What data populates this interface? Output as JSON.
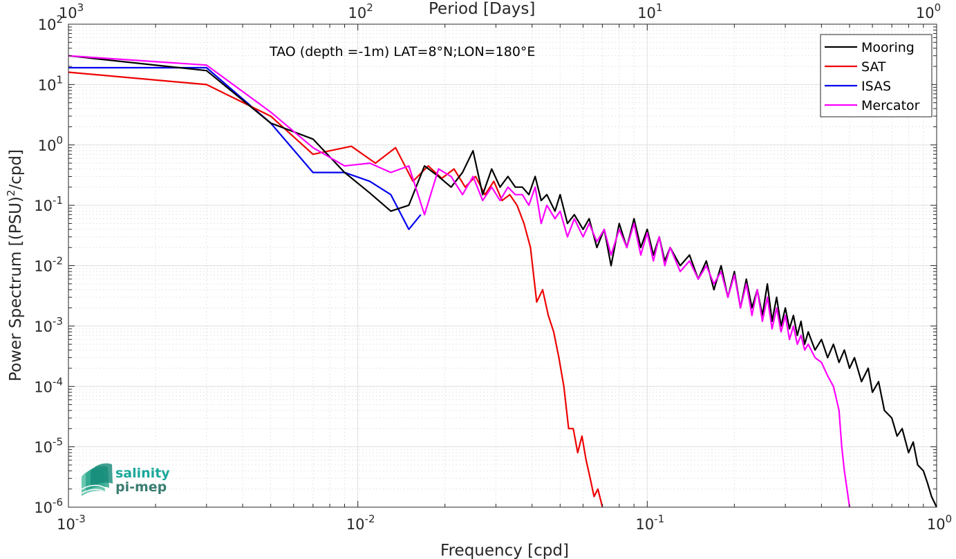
{
  "chart_data": {
    "type": "line",
    "title": "TAO (depth =-1m) LAT=8°N;LON=180°E",
    "xlabel": "Frequency [cpd]",
    "ylabel": "Power Spectrum [(PSU)^2/cpd]",
    "top_xlabel": "Period [Days]",
    "x_scale": "log",
    "y_scale": "log",
    "xlim": [
      0.001,
      1
    ],
    "ylim": [
      1e-06,
      100
    ],
    "x_ticks": [
      {
        "mant": "10",
        "exp": "-3"
      },
      {
        "mant": "10",
        "exp": "-2"
      },
      {
        "mant": "10",
        "exp": "-1"
      },
      {
        "mant": "10",
        "exp": "0"
      }
    ],
    "top_ticks": [
      {
        "mant": "10",
        "exp": "3"
      },
      {
        "mant": "10",
        "exp": "2"
      },
      {
        "mant": "10",
        "exp": "1"
      },
      {
        "mant": "10",
        "exp": "0"
      }
    ],
    "y_ticks": [
      {
        "mant": "10",
        "exp": "2"
      },
      {
        "mant": "10",
        "exp": "1"
      },
      {
        "mant": "10",
        "exp": "0"
      },
      {
        "mant": "10",
        "exp": "-1"
      },
      {
        "mant": "10",
        "exp": "-2"
      },
      {
        "mant": "10",
        "exp": "-3"
      },
      {
        "mant": "10",
        "exp": "-4"
      },
      {
        "mant": "10",
        "exp": "-5"
      },
      {
        "mant": "10",
        "exp": "-6"
      }
    ],
    "grid": true,
    "legend_position": "top-right",
    "series": [
      {
        "name": "Mooring",
        "color": "#000000",
        "x": [
          0.001,
          0.003,
          0.005,
          0.007,
          0.009,
          0.011,
          0.013,
          0.015,
          0.017,
          0.019,
          0.021,
          0.023,
          0.025,
          0.027,
          0.029,
          0.031,
          0.033,
          0.035,
          0.037,
          0.039,
          0.041,
          0.043,
          0.045,
          0.048,
          0.05,
          0.053,
          0.056,
          0.06,
          0.063,
          0.067,
          0.071,
          0.075,
          0.08,
          0.085,
          0.09,
          0.095,
          0.1,
          0.105,
          0.11,
          0.115,
          0.12,
          0.13,
          0.14,
          0.15,
          0.16,
          0.17,
          0.18,
          0.19,
          0.2,
          0.21,
          0.22,
          0.23,
          0.24,
          0.25,
          0.26,
          0.27,
          0.28,
          0.29,
          0.3,
          0.31,
          0.32,
          0.33,
          0.34,
          0.35,
          0.36,
          0.38,
          0.4,
          0.42,
          0.44,
          0.46,
          0.48,
          0.5,
          0.52,
          0.55,
          0.58,
          0.6,
          0.63,
          0.66,
          0.7,
          0.73,
          0.76,
          0.8,
          0.83,
          0.86,
          0.9,
          0.93,
          0.96,
          1.0
        ],
        "y": [
          30,
          17,
          2.3,
          1.25,
          0.35,
          0.16,
          0.08,
          0.1,
          0.45,
          0.3,
          0.2,
          0.35,
          0.8,
          0.15,
          0.4,
          0.2,
          0.3,
          0.2,
          0.2,
          0.15,
          0.3,
          0.12,
          0.15,
          0.08,
          0.15,
          0.05,
          0.07,
          0.04,
          0.06,
          0.02,
          0.04,
          0.01,
          0.05,
          0.02,
          0.06,
          0.02,
          0.04,
          0.015,
          0.03,
          0.012,
          0.02,
          0.01,
          0.015,
          0.006,
          0.012,
          0.004,
          0.01,
          0.003,
          0.008,
          0.002,
          0.006,
          0.002,
          0.004,
          0.0015,
          0.005,
          0.0012,
          0.003,
          0.001,
          0.002,
          0.0009,
          0.0015,
          0.0007,
          0.0012,
          0.0005,
          0.0008,
          0.0004,
          0.0006,
          0.0003,
          0.0005,
          0.00025,
          0.0004,
          0.0002,
          0.0003,
          0.00012,
          0.0002,
          8e-05,
          0.00012,
          4e-05,
          3e-05,
          1.5e-05,
          2e-05,
          8e-06,
          1.2e-05,
          5e-06,
          4e-06,
          2.5e-06,
          1.5e-06,
          1e-06
        ]
      },
      {
        "name": "SAT",
        "color": "#ee0000",
        "x": [
          0.001,
          0.003,
          0.005,
          0.007,
          0.0095,
          0.0115,
          0.0135,
          0.0155,
          0.0175,
          0.0195,
          0.0215,
          0.0235,
          0.0255,
          0.0275,
          0.0295,
          0.0315,
          0.0335,
          0.0355,
          0.0375,
          0.0395,
          0.0415,
          0.0435,
          0.0455,
          0.0475,
          0.0495,
          0.0515,
          0.0535,
          0.0555,
          0.0575,
          0.0595,
          0.0615,
          0.0635,
          0.0655,
          0.0675,
          0.07
        ],
        "y": [
          16,
          10,
          3.0,
          0.7,
          0.95,
          0.5,
          0.9,
          0.25,
          0.45,
          0.28,
          0.4,
          0.2,
          0.3,
          0.15,
          0.25,
          0.12,
          0.15,
          0.1,
          0.05,
          0.02,
          0.0025,
          0.004,
          0.0015,
          0.0008,
          0.0003,
          0.0001,
          2e-05,
          2e-05,
          8e-06,
          1.5e-05,
          6e-06,
          3e-06,
          1.5e-06,
          2e-06,
          1e-06
        ]
      },
      {
        "name": "ISAS",
        "color": "#0000ee",
        "x": [
          0.001,
          0.003,
          0.005,
          0.007,
          0.009,
          0.011,
          0.013,
          0.015,
          0.0165
        ],
        "y": [
          19,
          19,
          2.3,
          0.35,
          0.35,
          0.25,
          0.15,
          0.04,
          0.07
        ]
      },
      {
        "name": "Mercator",
        "color": "#ff00ff",
        "x": [
          0.001,
          0.003,
          0.005,
          0.007,
          0.009,
          0.011,
          0.013,
          0.015,
          0.017,
          0.019,
          0.021,
          0.023,
          0.025,
          0.027,
          0.029,
          0.031,
          0.033,
          0.035,
          0.037,
          0.039,
          0.041,
          0.043,
          0.045,
          0.048,
          0.05,
          0.053,
          0.056,
          0.06,
          0.063,
          0.067,
          0.071,
          0.075,
          0.08,
          0.085,
          0.09,
          0.095,
          0.1,
          0.105,
          0.11,
          0.115,
          0.12,
          0.13,
          0.14,
          0.15,
          0.16,
          0.17,
          0.18,
          0.19,
          0.2,
          0.21,
          0.22,
          0.23,
          0.24,
          0.25,
          0.26,
          0.27,
          0.28,
          0.29,
          0.3,
          0.31,
          0.32,
          0.33,
          0.34,
          0.35,
          0.36,
          0.38,
          0.4,
          0.42,
          0.44,
          0.46,
          0.47,
          0.48,
          0.49,
          0.5
        ],
        "y": [
          30,
          21,
          3.5,
          0.9,
          0.45,
          0.5,
          0.35,
          0.45,
          0.07,
          0.4,
          0.3,
          0.15,
          0.3,
          0.12,
          0.2,
          0.12,
          0.2,
          0.15,
          0.15,
          0.1,
          0.2,
          0.05,
          0.1,
          0.06,
          0.08,
          0.03,
          0.06,
          0.03,
          0.05,
          0.025,
          0.04,
          0.015,
          0.04,
          0.02,
          0.05,
          0.015,
          0.035,
          0.012,
          0.03,
          0.01,
          0.02,
          0.008,
          0.012,
          0.006,
          0.01,
          0.005,
          0.008,
          0.003,
          0.007,
          0.002,
          0.005,
          0.0015,
          0.004,
          0.0012,
          0.003,
          0.0009,
          0.002,
          0.0008,
          0.0015,
          0.0006,
          0.001,
          0.0005,
          0.0007,
          0.0004,
          0.0005,
          0.0003,
          0.00025,
          0.00015,
          0.0001,
          4e-05,
          1e-05,
          4e-06,
          2e-06,
          1e-06
        ]
      }
    ]
  },
  "logo": {
    "line1": "salinity",
    "line2": "pi-mep"
  }
}
